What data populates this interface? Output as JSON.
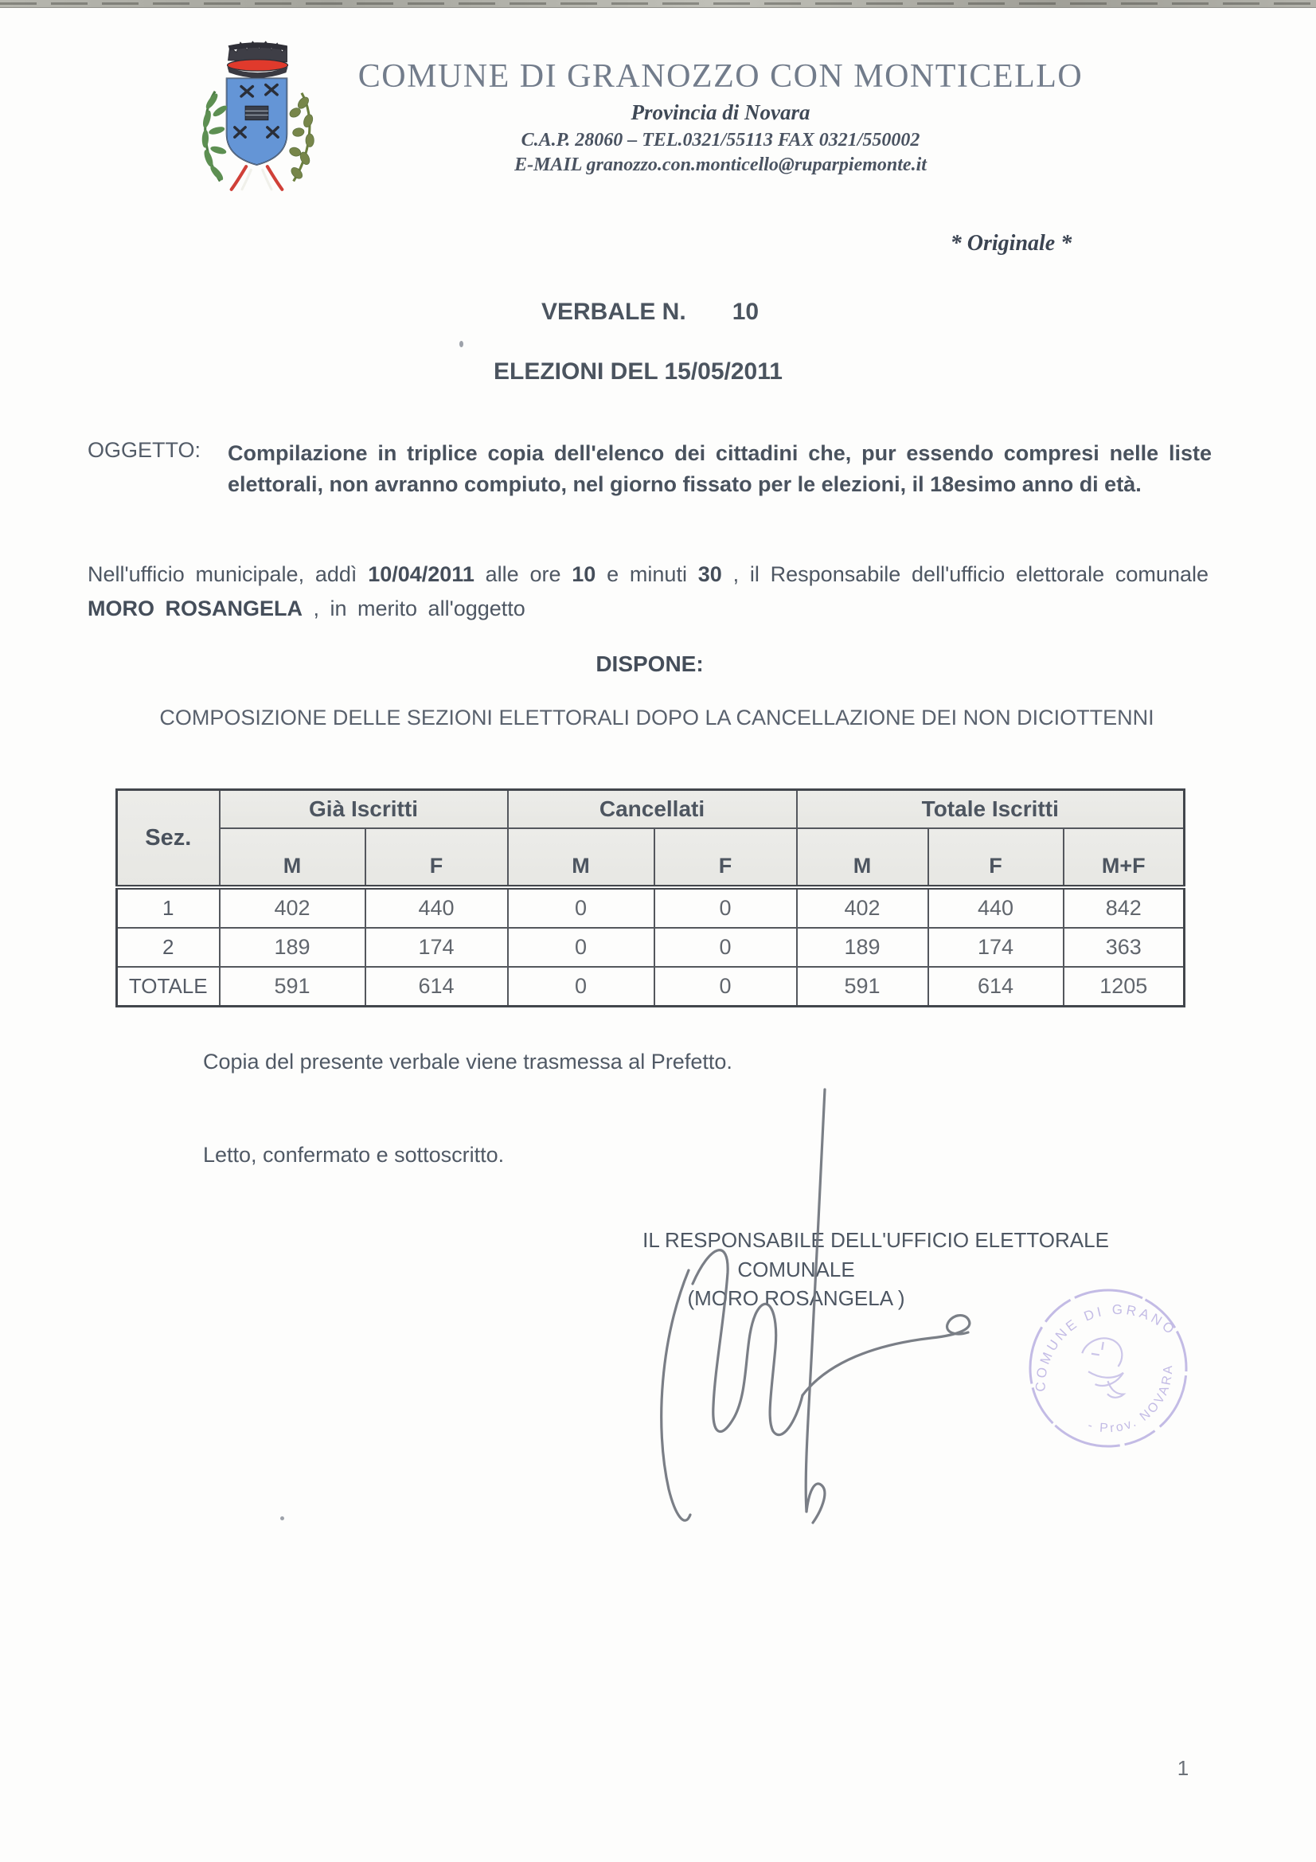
{
  "header": {
    "crest_icon": "municipal-coat-of-arms",
    "commune": "COMUNE DI GRANOZZO CON MONTICELLO",
    "province": "Provincia di Novara",
    "contact": "C.A.P. 28060 – TEL.0321/55113 FAX 0321/550002",
    "email": "E-MAIL granozzo.con.monticello@ruparpiemonte.it"
  },
  "marks": {
    "original": "* Originale *"
  },
  "verbale": {
    "label": "VERBALE N.",
    "number": "10"
  },
  "election": {
    "title": "ELEZIONI DEL 15/05/2011"
  },
  "oggetto": {
    "label": "OGGETTO:",
    "text": "Compilazione in triplice copia dell'elenco dei cittadini che, pur essendo compresi nelle liste elettorali, non avranno compiuto, nel giorno fissato per le elezioni, il 18esimo anno di età."
  },
  "intro": {
    "segments": [
      {
        "text": "Nell'ufficio municipale, addì ",
        "bold": false
      },
      {
        "text": "10/04/2011",
        "bold": true
      },
      {
        "text": "  alle ore ",
        "bold": false
      },
      {
        "text": "10",
        "bold": true
      },
      {
        "text": "  e minuti ",
        "bold": false
      },
      {
        "text": "30",
        "bold": true
      },
      {
        "text": " , il Responsabile dell'ufficio elettorale comunale ",
        "bold": false
      },
      {
        "text": "MORO ROSANGELA",
        "bold": true
      },
      {
        "text": " , in merito all'oggetto",
        "bold": false
      }
    ]
  },
  "dispone": "DISPONE:",
  "composizione": "COMPOSIZIONE DELLE SEZIONI ELETTORALI DOPO LA CANCELLAZIONE DEI NON DICIOTTENNI",
  "table": {
    "col_sez": "Sez.",
    "groups": [
      {
        "label": "Già Iscritti",
        "cols": [
          "M",
          "F"
        ]
      },
      {
        "label": "Cancellati",
        "cols": [
          "M",
          "F"
        ]
      },
      {
        "label": "Totale Iscritti",
        "cols": [
          "M",
          "F",
          "M+F"
        ]
      }
    ],
    "rows": [
      {
        "sez": "1",
        "values": [
          "402",
          "440",
          "0",
          "0",
          "402",
          "440",
          "842"
        ]
      },
      {
        "sez": "2",
        "values": [
          "189",
          "174",
          "0",
          "0",
          "189",
          "174",
          "363"
        ]
      },
      {
        "sez": "TOTALE",
        "values": [
          "591",
          "614",
          "0",
          "0",
          "591",
          "614",
          "1205"
        ]
      }
    ]
  },
  "closing": {
    "copia": "Copia del presente verbale viene trasmessa al Prefetto.",
    "letto": "Letto, confermato e sottoscritto."
  },
  "signature": {
    "role_line1": "IL RESPONSABILE DELL'UFFICIO ELETTORALE",
    "role_line2": "COMUNALE",
    "name": "(MORO ROSANGELA )",
    "signature_icon": "handwritten-signature",
    "stamp_icon": "round-municipal-stamp",
    "stamp_text_top": "COMUNE DI GRANOZZO",
    "stamp_text_bottom": "- Prov. NOVARA -"
  },
  "footer": {
    "page": "1"
  },
  "colors": {
    "ink": "#4e5763",
    "stamp": "#8a7ccf",
    "crest_blue": "#5e93d8",
    "crest_red": "#e03a2c",
    "crest_green": "#4e7d46"
  }
}
